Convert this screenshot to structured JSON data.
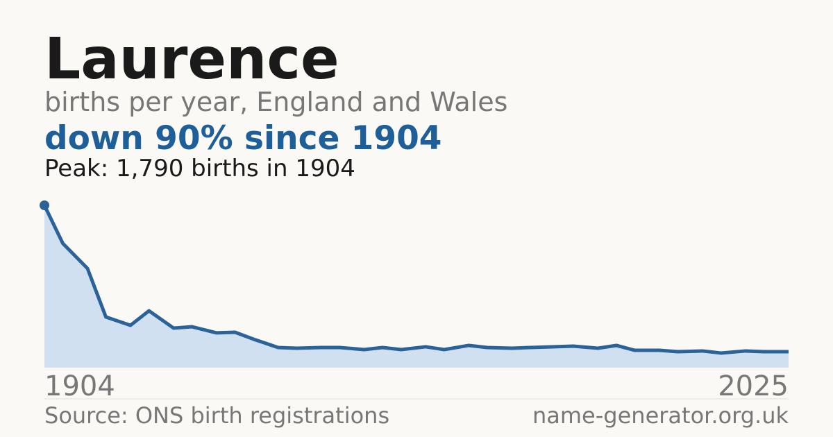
{
  "chart_data": {
    "type": "area",
    "title": "Laurence",
    "subtitle": "births per year, England and Wales",
    "headline": "down 90% since 1904",
    "peak_note": "Peak: 1,790 births in 1904",
    "source": "Source: ONS birth registrations",
    "site": "name-generator.org.uk",
    "x": [
      1904,
      1907,
      1911,
      1914,
      1918,
      1921,
      1925,
      1928,
      1932,
      1935,
      1938,
      1942,
      1945,
      1949,
      1952,
      1956,
      1959,
      1962,
      1966,
      1969,
      1973,
      1976,
      1980,
      1983,
      1987,
      1990,
      1994,
      1997,
      2000,
      2004,
      2007,
      2011,
      2014,
      2018,
      2021,
      2025
    ],
    "values": [
      1790,
      1369,
      1094,
      558,
      467,
      627,
      436,
      451,
      383,
      390,
      314,
      222,
      214,
      222,
      222,
      199,
      222,
      199,
      230,
      199,
      245,
      222,
      214,
      222,
      230,
      237,
      214,
      245,
      191,
      191,
      176,
      184,
      161,
      184,
      176,
      176
    ],
    "xlim": [
      1904,
      2025
    ],
    "xticks": [
      1904,
      2025
    ],
    "ylim": [
      0,
      1790
    ],
    "color": "#2b6399",
    "fill": "#d0e0f0"
  }
}
